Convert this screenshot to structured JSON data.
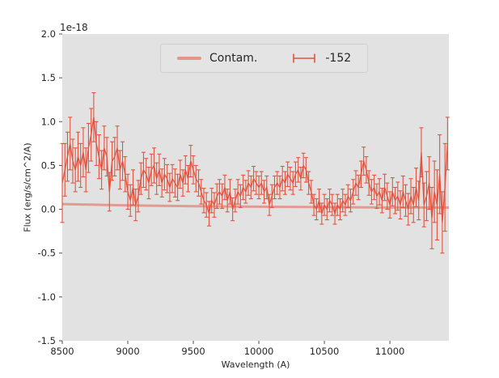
{
  "chart_data": {
    "type": "line",
    "subtype": "errorbar-spectrum",
    "title": "",
    "xlabel": "Wavelength (A)",
    "ylabel": "Flux (erg/s/cm^2/A)",
    "offset_text": "1e-18",
    "xlim": [
      8500,
      11450
    ],
    "ylim": [
      -1.5,
      2.0
    ],
    "xticks": [
      8500,
      9000,
      9500,
      10000,
      10500,
      11000
    ],
    "yticks": [
      -1.5,
      -1.0,
      -0.5,
      0.0,
      0.5,
      1.0,
      1.5,
      2.0
    ],
    "grid": false,
    "legend_position": "upper center",
    "legend": [
      {
        "label": "Contam.",
        "glyph": "line"
      },
      {
        "label": "-152",
        "glyph": "errorbar"
      }
    ],
    "colors": {
      "series": "#e2533e",
      "contam": "rgba(226,83,62,0.5)",
      "plot_bg": "#e2e2e2",
      "tick": "#4d4d4d",
      "text": "#262626"
    },
    "series": [
      {
        "name": "-152",
        "x": [
          8500,
          8520,
          8540,
          8560,
          8580,
          8600,
          8620,
          8640,
          8660,
          8680,
          8700,
          8720,
          8740,
          8760,
          8780,
          8800,
          8820,
          8840,
          8860,
          8880,
          8900,
          8920,
          8940,
          8960,
          8980,
          9000,
          9020,
          9040,
          9060,
          9080,
          9100,
          9120,
          9140,
          9160,
          9180,
          9200,
          9220,
          9240,
          9260,
          9280,
          9300,
          9320,
          9340,
          9360,
          9380,
          9400,
          9420,
          9440,
          9460,
          9480,
          9500,
          9520,
          9540,
          9560,
          9580,
          9600,
          9620,
          9640,
          9660,
          9680,
          9700,
          9720,
          9740,
          9760,
          9780,
          9800,
          9820,
          9840,
          9860,
          9880,
          9900,
          9920,
          9940,
          9960,
          9980,
          10000,
          10020,
          10040,
          10060,
          10080,
          10100,
          10120,
          10140,
          10160,
          10180,
          10200,
          10220,
          10240,
          10260,
          10280,
          10300,
          10320,
          10340,
          10360,
          10380,
          10400,
          10420,
          10440,
          10460,
          10480,
          10500,
          10520,
          10540,
          10560,
          10580,
          10600,
          10620,
          10640,
          10660,
          10680,
          10700,
          10720,
          10740,
          10760,
          10780,
          10800,
          10820,
          10840,
          10860,
          10880,
          10900,
          10920,
          10940,
          10960,
          10980,
          11000,
          11020,
          11040,
          11060,
          11080,
          11100,
          11120,
          11140,
          11160,
          11180,
          11200,
          11220,
          11240,
          11260,
          11280,
          11300,
          11320,
          11340,
          11360,
          11380,
          11400,
          11420,
          11440
        ],
        "y": [
          0.3,
          0.45,
          0.6,
          0.75,
          0.55,
          0.45,
          0.6,
          0.5,
          0.65,
          0.45,
          0.7,
          0.85,
          1.05,
          0.75,
          0.6,
          0.45,
          0.7,
          0.6,
          0.2,
          0.55,
          0.6,
          0.7,
          0.45,
          0.55,
          0.4,
          0.2,
          0.1,
          0.25,
          0.05,
          0.15,
          0.35,
          0.45,
          0.4,
          0.3,
          0.45,
          0.5,
          0.35,
          0.45,
          0.3,
          0.4,
          0.35,
          0.25,
          0.35,
          0.3,
          0.25,
          0.4,
          0.3,
          0.45,
          0.35,
          0.55,
          0.45,
          0.35,
          0.3,
          0.2,
          0.1,
          0.05,
          -0.05,
          0.1,
          0.05,
          0.15,
          0.2,
          0.15,
          0.25,
          0.1,
          0.2,
          0.0,
          0.1,
          0.2,
          0.15,
          0.25,
          0.2,
          0.3,
          0.25,
          0.35,
          0.3,
          0.25,
          0.3,
          0.2,
          0.25,
          0.05,
          0.15,
          0.25,
          0.3,
          0.25,
          0.35,
          0.3,
          0.4,
          0.35,
          0.3,
          0.4,
          0.45,
          0.35,
          0.5,
          0.45,
          0.3,
          0.2,
          0.05,
          0.0,
          0.1,
          -0.05,
          0.05,
          0.0,
          0.1,
          0.05,
          -0.05,
          0.05,
          0.0,
          0.1,
          0.05,
          0.15,
          0.1,
          0.2,
          0.3,
          0.25,
          0.4,
          0.55,
          0.45,
          0.3,
          0.2,
          0.25,
          0.15,
          0.2,
          0.1,
          0.25,
          0.15,
          0.05,
          0.2,
          0.1,
          0.15,
          0.05,
          0.2,
          0.1,
          0.0,
          0.15,
          0.05,
          0.25,
          0.1,
          0.65,
          0.05,
          0.15,
          0.3,
          -0.1,
          0.2,
          0.05,
          0.4,
          -0.15,
          0.25,
          0.75
        ],
        "yerr": [
          0.45,
          0.3,
          0.28,
          0.3,
          0.25,
          0.25,
          0.28,
          0.25,
          0.28,
          0.25,
          0.28,
          0.3,
          0.28,
          0.25,
          0.25,
          0.22,
          0.25,
          0.22,
          0.22,
          0.22,
          0.22,
          0.25,
          0.22,
          0.22,
          0.2,
          0.2,
          0.18,
          0.2,
          0.18,
          0.18,
          0.18,
          0.2,
          0.18,
          0.18,
          0.18,
          0.2,
          0.18,
          0.18,
          0.16,
          0.18,
          0.16,
          0.16,
          0.16,
          0.16,
          0.15,
          0.16,
          0.15,
          0.16,
          0.15,
          0.18,
          0.16,
          0.15,
          0.15,
          0.14,
          0.14,
          0.14,
          0.14,
          0.14,
          0.14,
          0.14,
          0.14,
          0.14,
          0.14,
          0.13,
          0.14,
          0.13,
          0.13,
          0.14,
          0.13,
          0.14,
          0.13,
          0.14,
          0.13,
          0.14,
          0.13,
          0.13,
          0.13,
          0.13,
          0.13,
          0.12,
          0.13,
          0.13,
          0.13,
          0.13,
          0.14,
          0.13,
          0.14,
          0.13,
          0.13,
          0.14,
          0.14,
          0.13,
          0.14,
          0.14,
          0.13,
          0.13,
          0.12,
          0.12,
          0.13,
          0.12,
          0.12,
          0.12,
          0.13,
          0.12,
          0.12,
          0.12,
          0.12,
          0.13,
          0.12,
          0.13,
          0.13,
          0.14,
          0.14,
          0.14,
          0.15,
          0.16,
          0.15,
          0.14,
          0.14,
          0.14,
          0.14,
          0.15,
          0.14,
          0.15,
          0.15,
          0.15,
          0.16,
          0.15,
          0.16,
          0.16,
          0.18,
          0.18,
          0.18,
          0.2,
          0.2,
          0.22,
          0.22,
          0.28,
          0.25,
          0.28,
          0.3,
          0.35,
          0.35,
          0.4,
          0.45,
          0.35,
          0.5,
          0.3
        ]
      },
      {
        "name": "Contam.",
        "x": [
          8500,
          9000,
          9500,
          10000,
          10500,
          11000,
          11450
        ],
        "y": [
          0.06,
          0.045,
          0.035,
          0.03,
          0.025,
          0.02,
          0.02
        ]
      }
    ]
  }
}
